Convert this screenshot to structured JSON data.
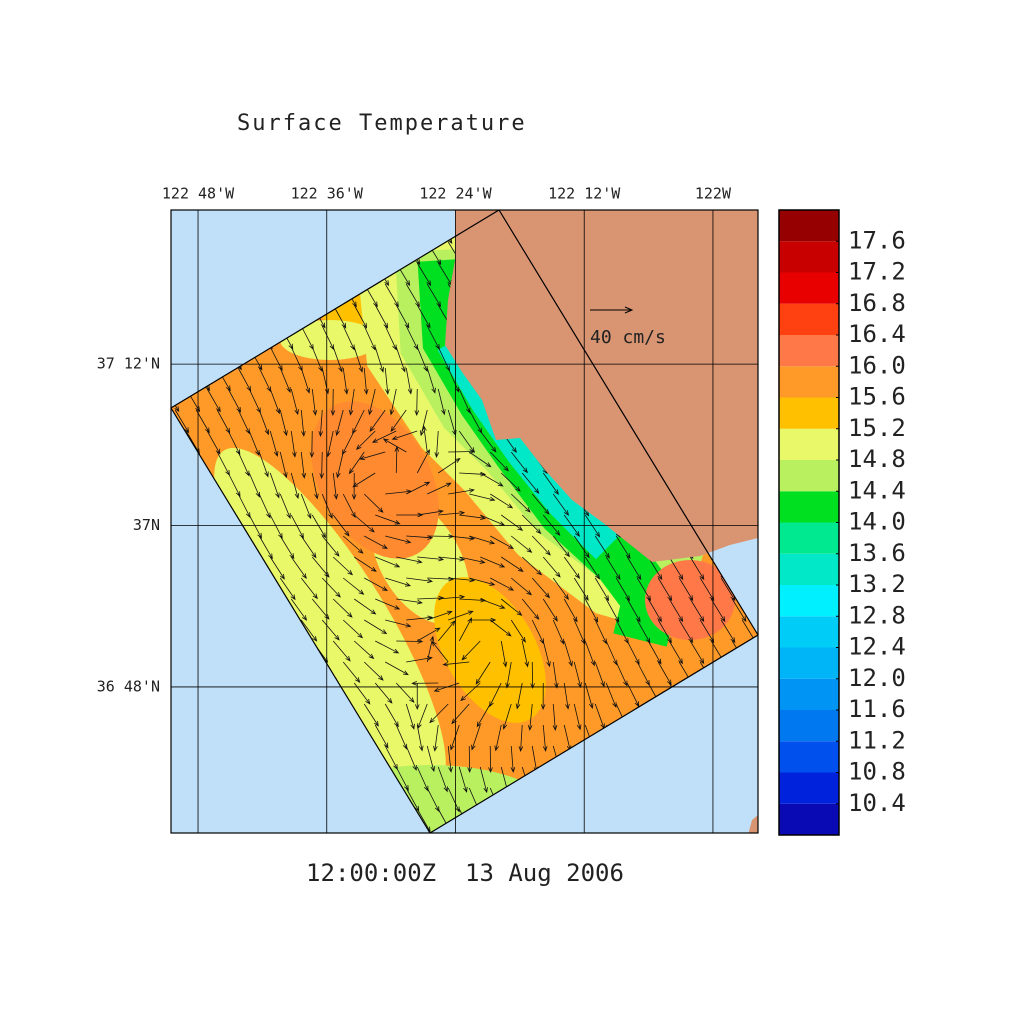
{
  "chart_data": {
    "type": "map",
    "title": "Surface Temperature",
    "footer": "12:00:00Z  13 Aug 2006",
    "xlim": [
      -122.842,
      -121.93
    ],
    "xticks": [
      {
        "value": -122.8,
        "label": "122 48'W"
      },
      {
        "value": -122.6,
        "label": "122 36'W"
      },
      {
        "value": -122.4,
        "label": "122 24'W"
      },
      {
        "value": -122.2,
        "label": "122 12'W"
      },
      {
        "value": -122.0,
        "label": "122W"
      }
    ],
    "ylim": [
      36.619,
      37.391
    ],
    "yticks": [
      {
        "value": 36.8,
        "label": "36 48'N"
      },
      {
        "value": 37.0,
        "label": "37N"
      },
      {
        "value": 37.2,
        "label": "37 12'N"
      }
    ],
    "grid": true,
    "reference_vector": "40 cm/s",
    "colorbar": {
      "clim": [
        10,
        18
      ],
      "colors": [
        "#0a0ab4",
        "#0022dd",
        "#0050ee",
        "#0078f0",
        "#0094f4",
        "#00b4f8",
        "#00ccf8",
        "#00f0ff",
        "#00e8c8",
        "#00e890",
        "#00e020",
        "#b8f060",
        "#e8f868",
        "#ffc000",
        "#ff9a28",
        "#ff7848",
        "#ff4010",
        "#e80000",
        "#c80000",
        "#960000"
      ],
      "ticks": [
        10.4,
        10.8,
        11.2,
        11.6,
        {
          "value": 12,
          "label": "12.0"
        },
        12.4,
        12.8,
        13.2,
        13.6,
        {
          "value": 14,
          "label": "14.0"
        },
        14.4,
        14.8,
        15.2,
        15.6,
        {
          "value": 16,
          "label": "16.0"
        },
        16.4,
        16.8,
        17.2,
        17.6
      ]
    }
  }
}
